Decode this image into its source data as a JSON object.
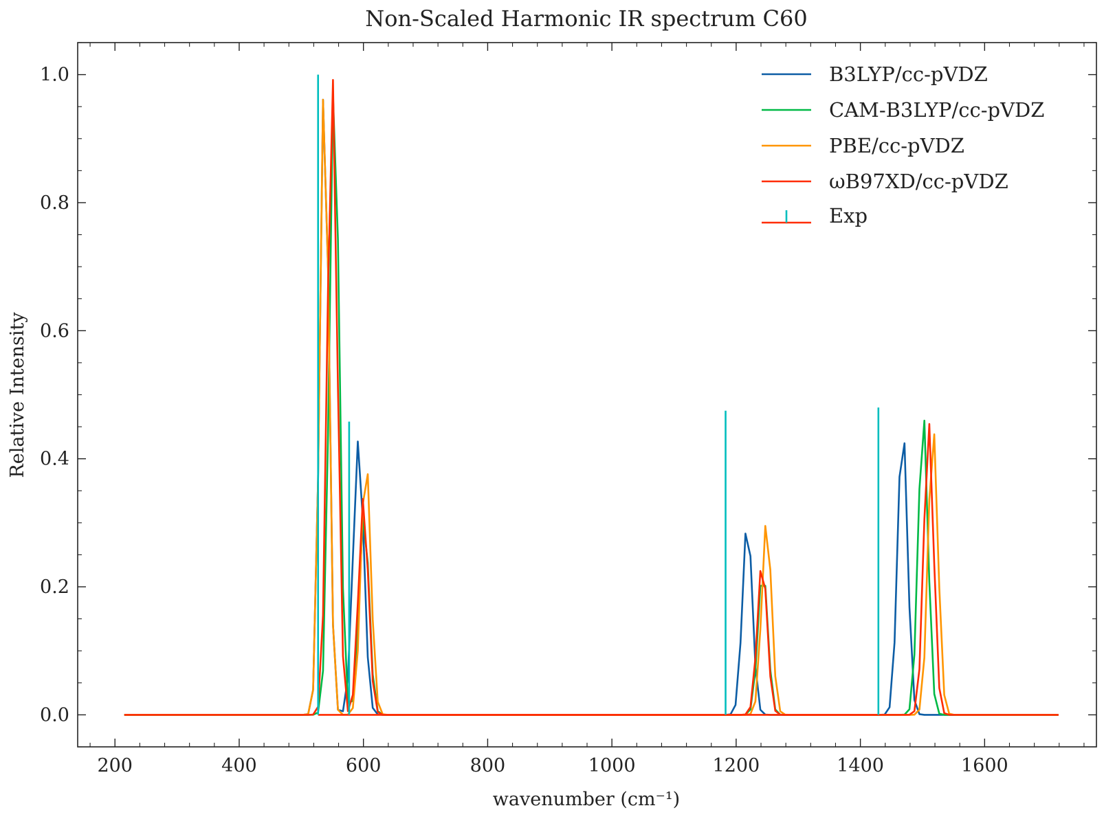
{
  "chart_data": {
    "type": "line",
    "title": "Non-Scaled Harmonic IR spectrum C60",
    "xlabel": "wavenumber (cm⁻¹)",
    "ylabel": "Relative Intensity",
    "xlim": [
      140,
      1780
    ],
    "ylim": [
      -0.05,
      1.05
    ],
    "xticks": [
      200,
      400,
      600,
      800,
      1000,
      1200,
      1400,
      1600
    ],
    "xtick_labels": [
      "200",
      "400",
      "600",
      "800",
      "1000",
      "1200",
      "1400",
      "1600"
    ],
    "yticks": [
      0.0,
      0.2,
      0.4,
      0.6,
      0.8,
      1.0
    ],
    "ytick_labels": [
      "0.0",
      "0.2",
      "0.4",
      "0.6",
      "0.8",
      "1.0"
    ],
    "grid": false,
    "legend_position": "top-right",
    "series": [
      {
        "name": "B3LYP/cc-pVDZ",
        "color": "#0C5DA5",
        "peaks": [
          {
            "center": 537,
            "height": 1.0,
            "width": 10
          },
          {
            "center": 592,
            "height": 0.43,
            "width": 12
          },
          {
            "center": 1218,
            "height": 0.305,
            "width": 11
          },
          {
            "center": 1468,
            "height": 0.457,
            "width": 11
          }
        ]
      },
      {
        "name": "CAM-B3LYP/cc-pVDZ",
        "color": "#00B945",
        "peaks": [
          {
            "center": 553,
            "height": 1.0,
            "width": 11
          },
          {
            "center": 601,
            "height": 0.32,
            "width": 11
          },
          {
            "center": 1243,
            "height": 0.23,
            "width": 11
          },
          {
            "center": 1501,
            "height": 0.475,
            "width": 11
          }
        ]
      },
      {
        "name": "PBE/cc-pVDZ",
        "color": "#FF9500",
        "peaks": [
          {
            "center": 537,
            "height": 1.0,
            "width": 10
          },
          {
            "center": 604,
            "height": 0.405,
            "width": 11
          },
          {
            "center": 1249,
            "height": 0.305,
            "width": 11
          },
          {
            "center": 1517,
            "height": 0.453,
            "width": 11
          }
        ]
      },
      {
        "name": "ωB97XD/cc-pVDZ",
        "color": "#FF2C00",
        "peaks": [
          {
            "center": 550,
            "height": 1.0,
            "width": 11
          },
          {
            "center": 600,
            "height": 0.34,
            "width": 11
          },
          {
            "center": 1242,
            "height": 0.242,
            "width": 11
          },
          {
            "center": 1510,
            "height": 0.458,
            "width": 11
          }
        ]
      }
    ],
    "x_start": 215,
    "x_end": 1720,
    "x_step": 8,
    "exp": {
      "name": "Exp",
      "stem_color": "#00BEBE",
      "base_color": "#FF2C00",
      "x": [
        527,
        577,
        1183,
        1429
      ],
      "y": [
        1.0,
        0.458,
        0.475,
        0.48
      ]
    }
  }
}
